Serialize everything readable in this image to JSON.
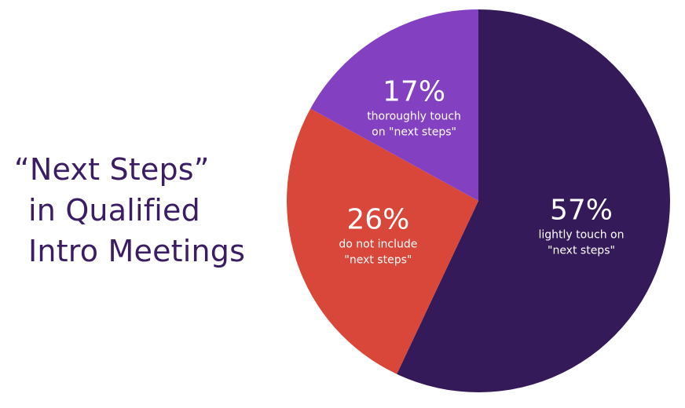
{
  "title": {
    "line1": "“Next Steps”",
    "line2": "in Qualified",
    "line3": "Intro Meetings"
  },
  "chart_data": {
    "type": "pie",
    "slices": [
      {
        "value": 57,
        "label": "57%",
        "desc_line1": "lightly touch on",
        "desc_line2": "\"next steps\"",
        "color": "#341a58"
      },
      {
        "value": 26,
        "label": "26%",
        "desc_line1": "do not include",
        "desc_line2": "\"next steps\"",
        "color": "#d9473a"
      },
      {
        "value": 17,
        "label": "17%",
        "desc_line1": "thoroughly touch",
        "desc_line2": "on \"next steps\"",
        "color": "#8341c2"
      }
    ]
  }
}
